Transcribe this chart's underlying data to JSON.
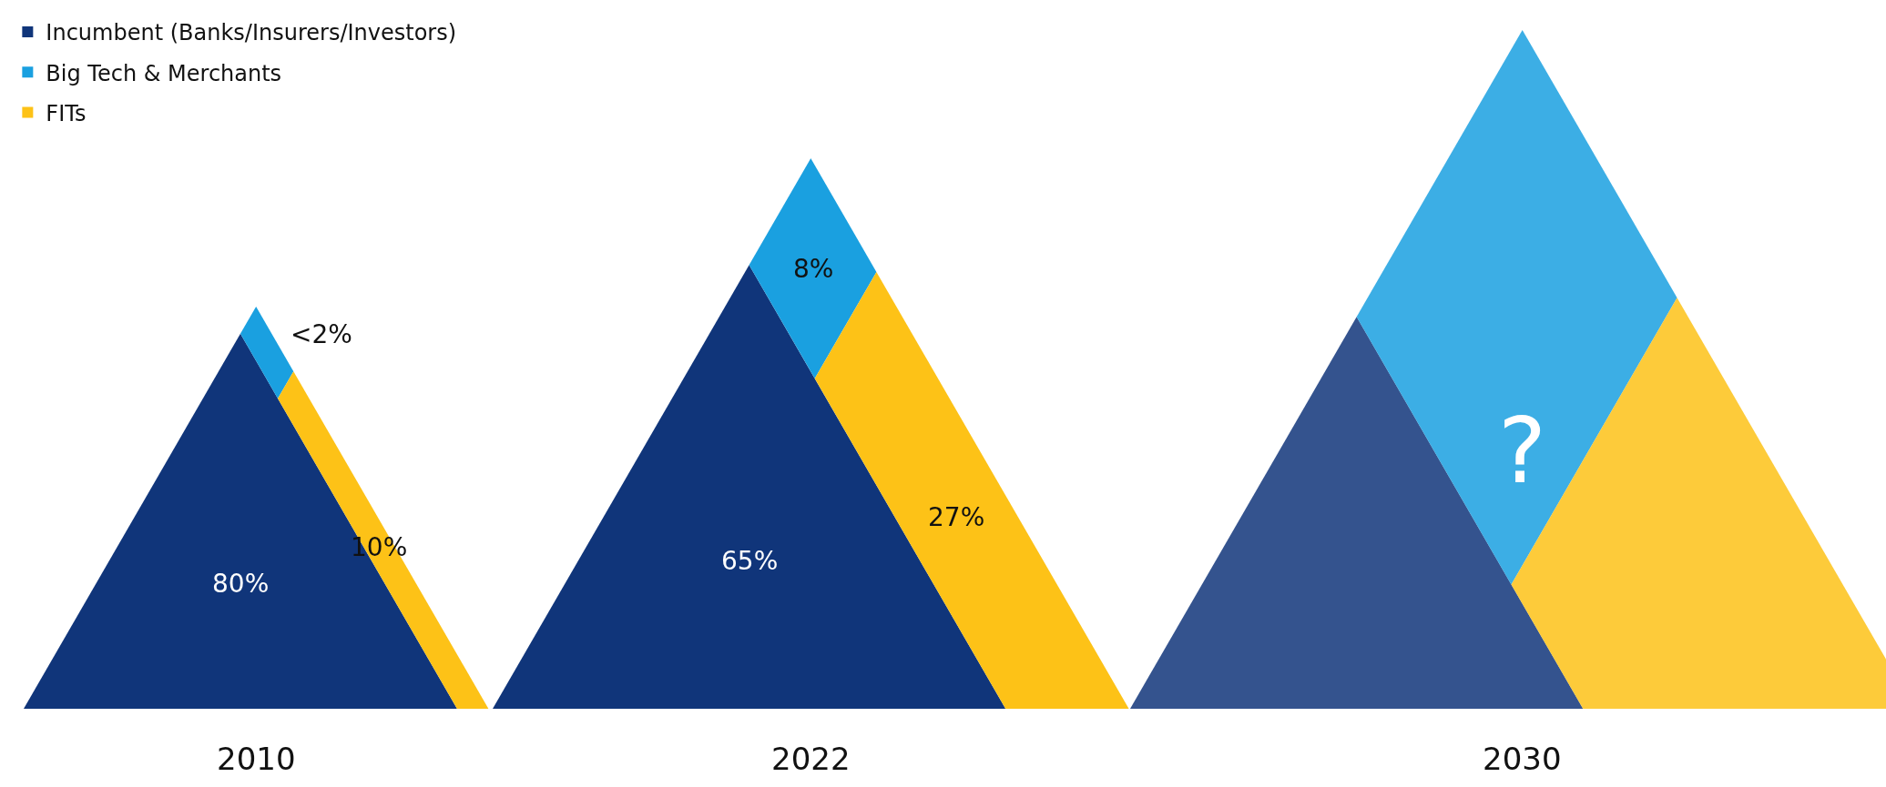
{
  "chart_data": {
    "type": "other",
    "categories": [
      "2010",
      "2022",
      "2030"
    ],
    "series": [
      {
        "name": "Incumbent (Banks/Insurers/Investors)",
        "color": "#10357a",
        "values": [
          80,
          65,
          null
        ],
        "value_labels": [
          "80%",
          "65%",
          null
        ]
      },
      {
        "name": "Big Tech & Merchants",
        "color": "#1aa0e0",
        "values": [
          2,
          8,
          null
        ],
        "value_labels": [
          "<2%",
          "8%",
          null
        ]
      },
      {
        "name": "FITs",
        "color": "#fdc217",
        "values": [
          10,
          27,
          null
        ],
        "value_labels": [
          "10%",
          "27%",
          null
        ]
      }
    ],
    "annotations": [
      "?"
    ],
    "legend": "top left"
  }
}
